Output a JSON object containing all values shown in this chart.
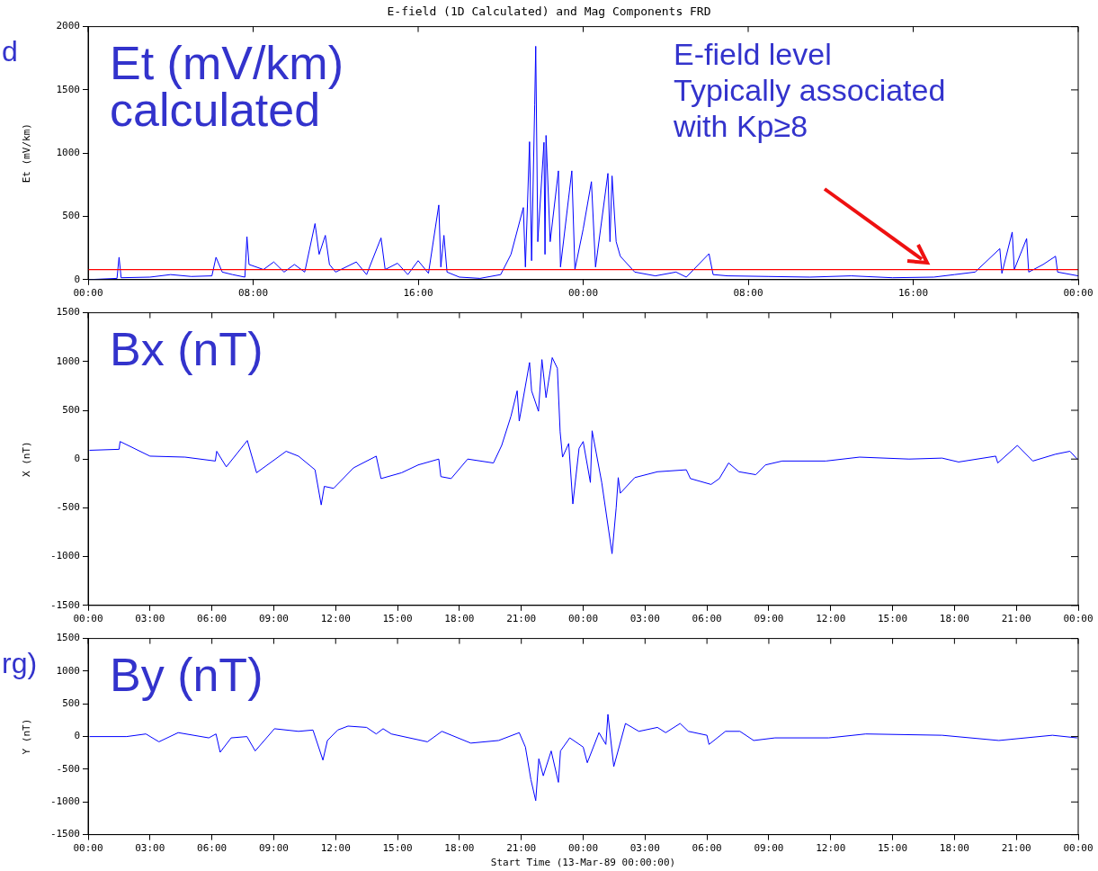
{
  "chart_data": [
    {
      "type": "line",
      "title": "E-field (1D Calculated) and Mag Components FRD",
      "ylabel": "Et (mV/km)",
      "series": [
        {
          "color": "#0000ff",
          "x": [
            "--03-13T00:00",
            "--03-13T01:24",
            "--03-13T01:30",
            "--03-13T01:36",
            "--03-13T03:00",
            "--03-13T04:00",
            "--03-13T05:00",
            "--03-13T06:00",
            "--03-13T06:12",
            "--03-13T06:30",
            "--03-13T07:00",
            "--03-13T07:36",
            "--03-13T07:42",
            "--03-13T07:48",
            "--03-13T08:30",
            "--03-13T09:00",
            "--03-13T09:30",
            "--03-13T10:00",
            "--03-13T10:30",
            "--03-13T11:00",
            "--03-13T11:12",
            "--03-13T11:30",
            "--03-13T11:42",
            "--03-13T12:00",
            "--03-13T13:00",
            "--03-13T13:30",
            "--03-13T14:12",
            "--03-13T14:24",
            "--03-13T15:00",
            "--03-13T15:30",
            "--03-13T16:00",
            "--03-13T16:30",
            "--03-13T17:00",
            "--03-13T17:06",
            "--03-13T17:15",
            "--03-13T17:24",
            "--03-13T18:00",
            "--03-13T19:00",
            "--03-13T20:00",
            "--03-13T20:30",
            "--03-13T21:06",
            "--03-13T21:12",
            "--03-13T21:24",
            "--03-13T21:30",
            "--03-13T21:39",
            "--03-13T21:42",
            "--03-13T21:48",
            "--03-13T22:06",
            "--03-13T22:09",
            "--03-13T22:12",
            "--03-13T22:24",
            "--03-13T22:48",
            "--03-13T22:54",
            "--03-13T23:27",
            "--03-13T23:36",
            "--03-14T00:00",
            "--03-14T00:24",
            "--03-14T00:36",
            "--03-14T01:12",
            "--03-14T01:18",
            "--03-14T01:24",
            "--03-14T01:36",
            "--03-14T01:48",
            "--03-14T02:30",
            "--03-14T03:30",
            "--03-14T04:30",
            "--03-14T05:00",
            "--03-14T06:06",
            "--03-14T06:18",
            "--03-14T07:00",
            "--03-14T09:00",
            "--03-14T11:00",
            "--03-14T13:00",
            "--03-14T15:00",
            "--03-14T17:00",
            "--03-14T18:00",
            "--03-14T19:00",
            "--03-14T20:12",
            "--03-14T20:18",
            "--03-14T20:48",
            "--03-14T20:54",
            "--03-14T21:30",
            "--03-14T21:36",
            "--03-14T22:18",
            "--03-14T22:54",
            "--03-14T23:00",
            "--03-15T00:00"
          ],
          "values": [
            0,
            10,
            177,
            15,
            20,
            40,
            25,
            30,
            177,
            60,
            40,
            20,
            340,
            120,
            80,
            140,
            60,
            120,
            60,
            443,
            200,
            350,
            120,
            60,
            140,
            40,
            330,
            80,
            130,
            40,
            150,
            50,
            590,
            100,
            350,
            60,
            20,
            10,
            40,
            200,
            570,
            100,
            1090,
            150,
            1380,
            1845,
            300,
            1085,
            200,
            1140,
            300,
            860,
            100,
            860,
            80,
            400,
            775,
            100,
            840,
            300,
            820,
            300,
            185,
            60,
            30,
            60,
            20,
            205,
            40,
            30,
            25,
            20,
            30,
            15,
            20,
            40,
            60,
            245,
            50,
            376,
            80,
            325,
            60,
            120,
            185,
            60,
            30
          ]
        }
      ],
      "xlim": [
        "--03-13T00:00",
        "--03-15T00:00"
      ],
      "ylim": [
        0,
        2000
      ],
      "yticks": [
        0,
        500,
        1000,
        1500,
        2000
      ],
      "xticks": [
        {
          "value": "--03-13T00:00",
          "label": "00:00"
        },
        {
          "value": "--03-13T08:00",
          "label": "08:00"
        },
        {
          "value": "--03-13T16:00",
          "label": "16:00"
        },
        {
          "value": "--03-14T00:00",
          "label": "00:00"
        },
        {
          "value": "--03-14T08:00",
          "label": "08:00"
        },
        {
          "value": "--03-14T16:00",
          "label": "16:00"
        },
        {
          "value": "--03-15T00:00",
          "label": "00:00"
        }
      ],
      "ref_lines": [
        {
          "axis": "y",
          "value": 80,
          "color": "#ff0000"
        }
      ],
      "annotations": [
        "Et (mV/km)\ncalculated",
        "d",
        "E-field level\nTypically associated\nwith Kp≥8"
      ],
      "marker": "none",
      "line_style": "solid",
      "grid": false,
      "legend": false
    },
    {
      "type": "line",
      "ylabel": "X (nT)",
      "series": [
        {
          "color": "#0000ff",
          "x": [
            "--03-13T00:04",
            "--03-13T01:30",
            "--03-13T01:33",
            "--03-13T03:00",
            "--03-13T04:42",
            "--03-13T06:10",
            "--03-13T06:14",
            "--03-13T06:42",
            "--03-13T07:43",
            "--03-13T08:10",
            "--03-13T09:36",
            "--03-13T10:12",
            "--03-13T11:00",
            "--03-13T11:18",
            "--03-13T11:27",
            "--03-13T11:54",
            "--03-13T12:52",
            "--03-13T13:58",
            "--03-13T14:12",
            "--03-13T15:12",
            "--03-13T16:00",
            "--03-13T17:00",
            "--03-13T17:06",
            "--03-13T17:36",
            "--03-13T18:24",
            "--03-13T19:39",
            "--03-13T20:03",
            "--03-13T20:30",
            "--03-13T20:48",
            "--03-13T20:54",
            "--03-13T21:24",
            "--03-13T21:30",
            "--03-13T21:50",
            "--03-13T22:00",
            "--03-13T22:12",
            "--03-13T22:30",
            "--03-13T22:45",
            "--03-13T22:53",
            "--03-13T23:00",
            "--03-13T23:18",
            "--03-13T23:30",
            "--03-13T23:48",
            "--03-14T00:00",
            "--03-14T00:21",
            "--03-14T00:26",
            "--03-14T00:54",
            "--03-14T01:24",
            "--03-14T01:36",
            "--03-14T01:42",
            "--03-14T01:48",
            "--03-14T02:30",
            "--03-14T03:36",
            "--03-14T05:00",
            "--03-14T05:12",
            "--03-14T06:12",
            "--03-14T06:36",
            "--03-14T07:03",
            "--03-14T07:33",
            "--03-14T08:22",
            "--03-14T08:50",
            "--03-14T09:39",
            "--03-14T11:46",
            "--03-14T13:24",
            "--03-14T15:48",
            "--03-14T17:24",
            "--03-14T18:12",
            "--03-14T20:00",
            "--03-14T20:06",
            "--03-14T21:03",
            "--03-14T21:48",
            "--03-14T22:54",
            "--03-14T23:36",
            "--03-14T23:57"
          ],
          "values": [
            90,
            100,
            180,
            30,
            20,
            -20,
            80,
            -80,
            190,
            -140,
            80,
            30,
            -110,
            -470,
            -280,
            -300,
            -90,
            30,
            -200,
            -140,
            -60,
            0,
            -180,
            -200,
            0,
            -40,
            140,
            440,
            700,
            390,
            990,
            700,
            490,
            1020,
            630,
            1040,
            930,
            280,
            20,
            160,
            -460,
            110,
            180,
            -240,
            290,
            -240,
            -970,
            -500,
            -190,
            -350,
            -190,
            -130,
            -110,
            -200,
            -260,
            -200,
            -40,
            -130,
            -160,
            -60,
            -20,
            -20,
            20,
            0,
            10,
            -30,
            30,
            -40,
            140,
            -20,
            50,
            80,
            0
          ]
        }
      ],
      "xlim": [
        "--03-13T00:00",
        "--03-15T00:00"
      ],
      "ylim": [
        -1500,
        1500
      ],
      "yticks": [
        -1500,
        -1000,
        -500,
        0,
        500,
        1000,
        1500
      ],
      "xticks": [
        {
          "value": "--03-13T00:00",
          "label": "00:00"
        },
        {
          "value": "--03-13T03:00",
          "label": "03:00"
        },
        {
          "value": "--03-13T06:00",
          "label": "06:00"
        },
        {
          "value": "--03-13T09:00",
          "label": "09:00"
        },
        {
          "value": "--03-13T12:00",
          "label": "12:00"
        },
        {
          "value": "--03-13T15:00",
          "label": "15:00"
        },
        {
          "value": "--03-13T18:00",
          "label": "18:00"
        },
        {
          "value": "--03-13T21:00",
          "label": "21:00"
        },
        {
          "value": "--03-14T00:00",
          "label": "00:00"
        },
        {
          "value": "--03-14T03:00",
          "label": "03:00"
        },
        {
          "value": "--03-14T06:00",
          "label": "06:00"
        },
        {
          "value": "--03-14T09:00",
          "label": "09:00"
        },
        {
          "value": "--03-14T12:00",
          "label": "12:00"
        },
        {
          "value": "--03-14T15:00",
          "label": "15:00"
        },
        {
          "value": "--03-14T18:00",
          "label": "18:00"
        },
        {
          "value": "--03-14T21:00",
          "label": "21:00"
        },
        {
          "value": "--03-15T00:00",
          "label": "00:00"
        }
      ],
      "annotations": [
        "Bx (nT)"
      ],
      "marker": "none",
      "line_style": "solid",
      "grid": false,
      "legend": false
    },
    {
      "type": "line",
      "ylabel": "Y (nT)",
      "xlabel": "Start Time (13-Mar-89 00:00:00)",
      "series": [
        {
          "color": "#0000ff",
          "x": [
            "--03-13T00:04",
            "--03-13T01:52",
            "--03-13T02:48",
            "--03-13T03:26",
            "--03-13T04:22",
            "--03-13T05:51",
            "--03-13T06:12",
            "--03-13T06:24",
            "--03-13T06:56",
            "--03-13T07:42",
            "--03-13T08:06",
            "--03-13T09:02",
            "--03-13T10:12",
            "--03-13T10:54",
            "--03-13T11:23",
            "--03-13T11:36",
            "--03-13T12:06",
            "--03-13T12:36",
            "--03-13T13:30",
            "--03-13T13:58",
            "--03-13T14:18",
            "--03-13T14:42",
            "--03-13T16:27",
            "--03-13T17:09",
            "--03-13T18:33",
            "--03-13T19:54",
            "--03-13T20:54",
            "--03-13T21:12",
            "--03-13T21:28",
            "--03-13T21:42",
            "--03-13T21:51",
            "--03-13T22:04",
            "--03-13T22:27",
            "--03-13T22:48",
            "--03-13T22:54",
            "--03-13T23:21",
            "--03-14T00:00",
            "--03-14T00:12",
            "--03-14T00:46",
            "--03-14T01:06",
            "--03-14T01:12",
            "--03-14T01:29",
            "--03-14T02:03",
            "--03-14T02:42",
            "--03-14T03:36",
            "--03-14T04:00",
            "--03-14T04:42",
            "--03-14T05:06",
            "--03-14T06:00",
            "--03-14T06:06",
            "--03-14T06:54",
            "--03-14T07:36",
            "--03-14T08:16",
            "--03-14T09:18",
            "--03-14T11:54",
            "--03-14T13:42",
            "--03-14T17:24",
            "--03-14T20:09",
            "--03-14T22:45",
            "--03-14T23:57"
          ],
          "values": [
            0,
            0,
            40,
            -80,
            60,
            -20,
            40,
            -240,
            -20,
            0,
            -220,
            120,
            80,
            100,
            -360,
            -60,
            100,
            160,
            140,
            40,
            120,
            40,
            -80,
            80,
            -100,
            -60,
            60,
            -160,
            -660,
            -980,
            -340,
            -600,
            -220,
            -700,
            -220,
            -20,
            -160,
            -400,
            60,
            -120,
            340,
            -460,
            200,
            80,
            140,
            60,
            200,
            80,
            20,
            -120,
            80,
            80,
            -60,
            -20,
            -20,
            40,
            20,
            -60,
            20,
            -20
          ]
        }
      ],
      "xlim": [
        "--03-13T00:00",
        "--03-15T00:00"
      ],
      "ylim": [
        -1500,
        1500
      ],
      "yticks": [
        -1500,
        -1000,
        -500,
        0,
        500,
        1000,
        1500
      ],
      "xticks": [
        {
          "value": "--03-13T00:00",
          "label": "00:00"
        },
        {
          "value": "--03-13T03:00",
          "label": "03:00"
        },
        {
          "value": "--03-13T06:00",
          "label": "06:00"
        },
        {
          "value": "--03-13T09:00",
          "label": "09:00"
        },
        {
          "value": "--03-13T12:00",
          "label": "12:00"
        },
        {
          "value": "--03-13T15:00",
          "label": "15:00"
        },
        {
          "value": "--03-13T18:00",
          "label": "18:00"
        },
        {
          "value": "--03-13T21:00",
          "label": "21:00"
        },
        {
          "value": "--03-14T00:00",
          "label": "00:00"
        },
        {
          "value": "--03-14T03:00",
          "label": "03:00"
        },
        {
          "value": "--03-14T06:00",
          "label": "06:00"
        },
        {
          "value": "--03-14T09:00",
          "label": "09:00"
        },
        {
          "value": "--03-14T12:00",
          "label": "12:00"
        },
        {
          "value": "--03-14T15:00",
          "label": "15:00"
        },
        {
          "value": "--03-14T18:00",
          "label": "18:00"
        },
        {
          "value": "--03-14T21:00",
          "label": "21:00"
        },
        {
          "value": "--03-15T00:00",
          "label": "00:00"
        }
      ],
      "annotations": [
        "By (nT)",
        "rg)"
      ],
      "marker": "none",
      "line_style": "solid",
      "grid": false,
      "legend": false
    }
  ]
}
